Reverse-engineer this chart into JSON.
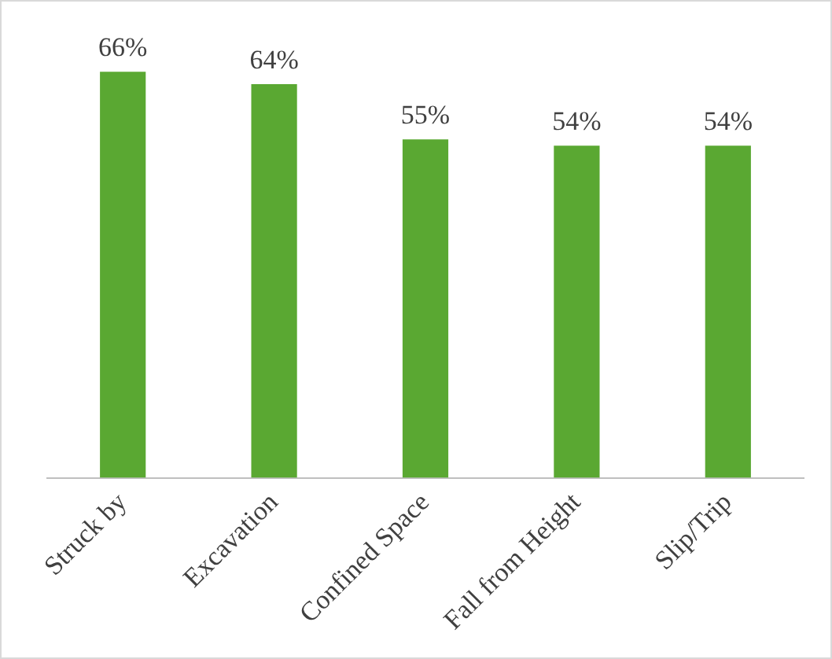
{
  "chart_data": {
    "type": "bar",
    "categories": [
      "Struck by",
      "Excavation",
      "Confined Space",
      "Fall from Height",
      "Slip/Trip"
    ],
    "values": [
      66,
      64,
      55,
      54,
      54
    ],
    "value_labels": [
      "66%",
      "64%",
      "55%",
      "54%",
      "54%"
    ],
    "color": "#5aa832",
    "grid": false,
    "legend": false
  }
}
